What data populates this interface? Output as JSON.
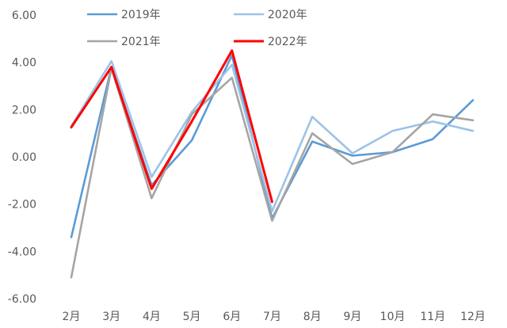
{
  "chart_data": {
    "type": "line",
    "title": "",
    "xlabel": "",
    "ylabel": "",
    "categories": [
      "2月",
      "3月",
      "4月",
      "5月",
      "6月",
      "7月",
      "8月",
      "9月",
      "10月",
      "11月",
      "12月"
    ],
    "ylim": [
      -6,
      6
    ],
    "yticks": [
      -6,
      -4,
      -2,
      0,
      2,
      4,
      6
    ],
    "ytick_labels": [
      "-6.00",
      "-4.00",
      "-2.00",
      "0.00",
      "2.00",
      "4.00",
      "6.00"
    ],
    "grid": false,
    "legend_position": "top",
    "series": [
      {
        "name": "2019年",
        "color": "#5B9BD5",
        "values": [
          -3.4,
          3.8,
          -1.2,
          0.7,
          4.3,
          -2.6,
          0.65,
          0.05,
          0.2,
          0.75,
          2.4
        ]
      },
      {
        "name": "2020年",
        "color": "#9DC3E6",
        "values": [
          1.3,
          4.05,
          -0.85,
          1.9,
          3.9,
          -2.3,
          1.7,
          0.15,
          1.1,
          1.5,
          1.1
        ]
      },
      {
        "name": "2021年",
        "color": "#A5A5A5",
        "values": [
          -5.1,
          3.75,
          -1.75,
          1.8,
          3.35,
          -2.7,
          1.0,
          -0.3,
          0.2,
          1.8,
          1.55
        ]
      },
      {
        "name": "2022年",
        "color": "#FF0000",
        "values": [
          1.25,
          3.8,
          -1.35,
          1.5,
          4.5,
          -1.9,
          null,
          null,
          null,
          null,
          null
        ]
      }
    ]
  }
}
